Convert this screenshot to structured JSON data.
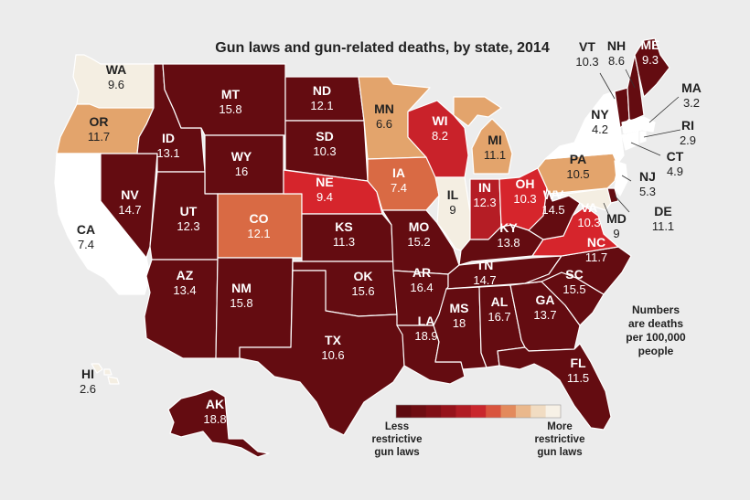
{
  "title": "Gun laws and gun-related deaths, by state, 2014",
  "note": [
    "Numbers",
    "are deaths",
    "per 100,000",
    "people"
  ],
  "legend": {
    "left_label": [
      "Less",
      "restrictive",
      "gun laws"
    ],
    "right_label": [
      "More",
      "restrictive",
      "gun laws"
    ],
    "colors": [
      "#5e0a0f",
      "#6e0d12",
      "#800f16",
      "#96131b",
      "#b01c24",
      "#c9272d",
      "#d9543e",
      "#e38a5c",
      "#eab88c",
      "#f1dcc2",
      "#f7f1e6"
    ]
  },
  "colors": {
    "darkest": "#640c11",
    "dark": "#7d1016",
    "red": "#b51d25",
    "bright_red": "#d6252c",
    "orange": "#e37a4c",
    "tan": "#e3a46c",
    "light": "#f4eee2",
    "white": "#ffffff",
    "background": "#ececec"
  },
  "states": [
    {
      "code": "WA",
      "value": "9.6",
      "fill": "#f4eee2",
      "text": "#222"
    },
    {
      "code": "OR",
      "value": "11.7",
      "fill": "#e3a46c",
      "text": "#222"
    },
    {
      "code": "CA",
      "value": "7.4",
      "fill": "#ffffff",
      "text": "#222"
    },
    {
      "code": "NV",
      "value": "14.7",
      "fill": "#640c11",
      "text": "#fff"
    },
    {
      "code": "ID",
      "value": "13.1",
      "fill": "#640c11",
      "text": "#fff"
    },
    {
      "code": "MT",
      "value": "15.8",
      "fill": "#640c11",
      "text": "#fff"
    },
    {
      "code": "WY",
      "value": "16",
      "fill": "#640c11",
      "text": "#fff"
    },
    {
      "code": "UT",
      "value": "12.3",
      "fill": "#640c11",
      "text": "#fff"
    },
    {
      "code": "AZ",
      "value": "13.4",
      "fill": "#640c11",
      "text": "#fff"
    },
    {
      "code": "NM",
      "value": "15.8",
      "fill": "#640c11",
      "text": "#fff"
    },
    {
      "code": "CO",
      "value": "12.1",
      "fill": "#d96a44",
      "text": "#fff"
    },
    {
      "code": "ND",
      "value": "12.1",
      "fill": "#640c11",
      "text": "#fff"
    },
    {
      "code": "SD",
      "value": "10.3",
      "fill": "#640c11",
      "text": "#fff"
    },
    {
      "code": "NE",
      "value": "9.4",
      "fill": "#d6252c",
      "text": "#fff"
    },
    {
      "code": "KS",
      "value": "11.3",
      "fill": "#640c11",
      "text": "#fff"
    },
    {
      "code": "OK",
      "value": "15.6",
      "fill": "#640c11",
      "text": "#fff"
    },
    {
      "code": "TX",
      "value": "10.6",
      "fill": "#640c11",
      "text": "#fff"
    },
    {
      "code": "MN",
      "value": "6.6",
      "fill": "#e3a46c",
      "text": "#222"
    },
    {
      "code": "IA",
      "value": "7.4",
      "fill": "#d96a44",
      "text": "#fff"
    },
    {
      "code": "MO",
      "value": "15.2",
      "fill": "#640c11",
      "text": "#fff"
    },
    {
      "code": "AR",
      "value": "16.4",
      "fill": "#640c11",
      "text": "#fff"
    },
    {
      "code": "LA",
      "value": "18.9",
      "fill": "#640c11",
      "text": "#fff"
    },
    {
      "code": "WI",
      "value": "8.2",
      "fill": "#c9222a",
      "text": "#fff"
    },
    {
      "code": "IL",
      "value": "9",
      "fill": "#f4eee2",
      "text": "#222"
    },
    {
      "code": "MI",
      "value": "11.1",
      "fill": "#e3a46c",
      "text": "#222"
    },
    {
      "code": "IN",
      "value": "12.3",
      "fill": "#b51d25",
      "text": "#fff"
    },
    {
      "code": "OH",
      "value": "10.3",
      "fill": "#d6252c",
      "text": "#fff"
    },
    {
      "code": "KY",
      "value": "13.8",
      "fill": "#640c11",
      "text": "#fff"
    },
    {
      "code": "TN",
      "value": "14.7",
      "fill": "#640c11",
      "text": "#fff"
    },
    {
      "code": "MS",
      "value": "18",
      "fill": "#640c11",
      "text": "#fff"
    },
    {
      "code": "AL",
      "value": "16.7",
      "fill": "#640c11",
      "text": "#fff"
    },
    {
      "code": "GA",
      "value": "13.7",
      "fill": "#640c11",
      "text": "#fff"
    },
    {
      "code": "FL",
      "value": "11.5",
      "fill": "#640c11",
      "text": "#fff"
    },
    {
      "code": "SC",
      "value": "15.5",
      "fill": "#640c11",
      "text": "#fff"
    },
    {
      "code": "NC",
      "value": "11.7",
      "fill": "#640c11",
      "text": "#fff"
    },
    {
      "code": "VA",
      "value": "10.3",
      "fill": "#d6252c",
      "text": "#fff"
    },
    {
      "code": "WV",
      "value": "14.5",
      "fill": "#640c11",
      "text": "#fff"
    },
    {
      "code": "PA",
      "value": "10.5",
      "fill": "#e3a46c",
      "text": "#222"
    },
    {
      "code": "NY",
      "value": "4.2",
      "fill": "#ffffff",
      "text": "#222"
    },
    {
      "code": "VT",
      "value": "10.3",
      "fill": "#640c11",
      "text": "#222"
    },
    {
      "code": "NH",
      "value": "8.6",
      "fill": "#640c11",
      "text": "#222"
    },
    {
      "code": "ME",
      "value": "9.3",
      "fill": "#640c11",
      "text": "#fff"
    },
    {
      "code": "MA",
      "value": "3.2",
      "fill": "#ffffff",
      "text": "#222"
    },
    {
      "code": "RI",
      "value": "2.9",
      "fill": "#ffffff",
      "text": "#222"
    },
    {
      "code": "CT",
      "value": "4.9",
      "fill": "#ffffff",
      "text": "#222"
    },
    {
      "code": "NJ",
      "value": "5.3",
      "fill": "#ffffff",
      "text": "#222"
    },
    {
      "code": "DE",
      "value": "11.1",
      "fill": "#640c11",
      "text": "#222"
    },
    {
      "code": "MD",
      "value": "9",
      "fill": "#f4eee2",
      "text": "#222"
    },
    {
      "code": "AK",
      "value": "18.8",
      "fill": "#640c11",
      "text": "#fff"
    },
    {
      "code": "HI",
      "value": "2.6",
      "fill": "#f4eee2",
      "text": "#222"
    }
  ]
}
